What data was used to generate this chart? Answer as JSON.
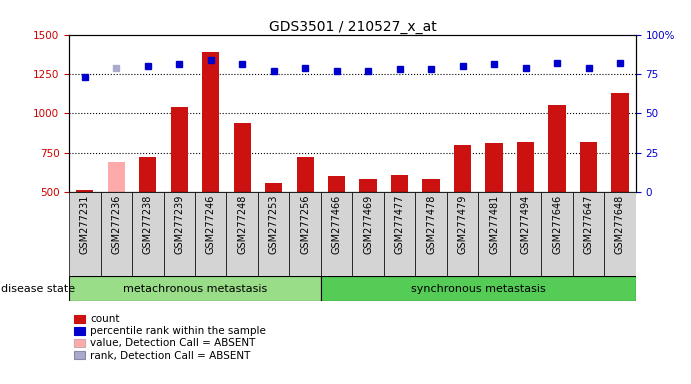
{
  "title": "GDS3501 / 210527_x_at",
  "samples": [
    "GSM277231",
    "GSM277236",
    "GSM277238",
    "GSM277239",
    "GSM277246",
    "GSM277248",
    "GSM277253",
    "GSM277256",
    "GSM277466",
    "GSM277469",
    "GSM277477",
    "GSM277478",
    "GSM277479",
    "GSM277481",
    "GSM277494",
    "GSM277646",
    "GSM277647",
    "GSM277648"
  ],
  "bar_values": [
    510,
    690,
    720,
    1040,
    1390,
    940,
    560,
    720,
    600,
    580,
    610,
    580,
    800,
    810,
    820,
    1050,
    820,
    1130
  ],
  "bar_absent": [
    false,
    true,
    false,
    false,
    false,
    false,
    false,
    false,
    false,
    false,
    false,
    false,
    false,
    false,
    false,
    false,
    false,
    false
  ],
  "rank_values": [
    73,
    79,
    80,
    81,
    84,
    81,
    77,
    79,
    77,
    77,
    78,
    78,
    80,
    81,
    79,
    82,
    79,
    82
  ],
  "rank_absent": [
    false,
    true,
    false,
    false,
    false,
    false,
    false,
    false,
    false,
    false,
    false,
    false,
    false,
    false,
    false,
    false,
    false,
    false
  ],
  "metachronous_count": 8,
  "synchronous_count": 10,
  "group1_label": "metachronous metastasis",
  "group2_label": "synchronous metastasis",
  "disease_state_label": "disease state",
  "ylim_left": [
    500,
    1500
  ],
  "ylim_right": [
    0,
    100
  ],
  "yticks_left": [
    500,
    750,
    1000,
    1250,
    1500
  ],
  "yticks_right": [
    0,
    25,
    50,
    75,
    100
  ],
  "bar_color": "#cc1111",
  "bar_absent_color": "#ffaaaa",
  "rank_color": "#0000cc",
  "rank_absent_color": "#aaaacc",
  "hgrid_values": [
    750,
    1000,
    1250
  ],
  "background_color": "#ffffff",
  "tick_label_color_left": "#cc0000",
  "tick_label_color_right": "#0000cc",
  "title_fontsize": 10,
  "tick_fontsize": 7.5,
  "xtick_fontsize": 7,
  "legend_fontsize": 7.5,
  "group_fontsize": 8,
  "xtick_bg_color": "#d4d4d4",
  "group1_color": "#99dd88",
  "group2_color": "#55cc55"
}
